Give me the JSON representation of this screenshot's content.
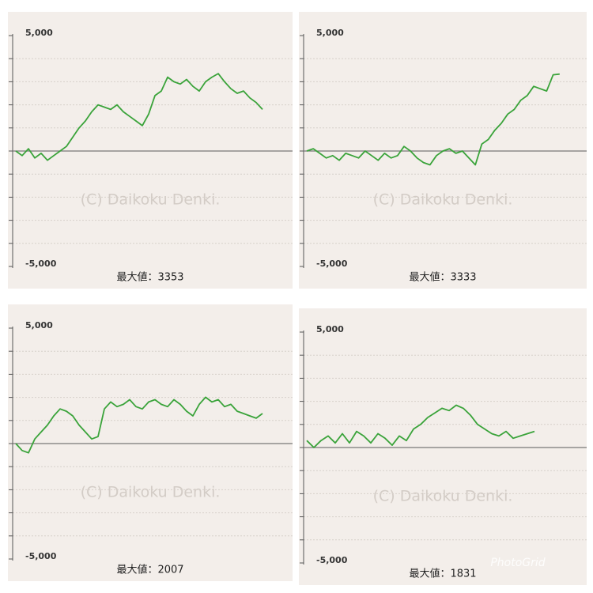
{
  "chart_data": [
    {
      "type": "line",
      "annotation": "最大値：3353",
      "watermark": "(C) Daikoku Denki.",
      "color": "#3aa33a",
      "grid": true,
      "ylim": [
        -5000,
        5000
      ],
      "yticks": [
        {
          "value": 5000,
          "label": "5,000"
        },
        {
          "value": -5000,
          "label": "-5,000"
        }
      ],
      "minor_yticks": [
        -4000,
        -3000,
        -2000,
        -1000,
        0,
        1000,
        2000,
        3000,
        4000
      ],
      "values": [
        0,
        -200,
        100,
        -300,
        -100,
        -400,
        -200,
        0,
        200,
        600,
        1000,
        1300,
        1700,
        2000,
        1900,
        1800,
        2000,
        1700,
        1500,
        1300,
        1100,
        1600,
        2400,
        2600,
        3200,
        3000,
        2900,
        3100,
        2800,
        2600,
        3000,
        3200,
        3353,
        3000,
        2700,
        2500,
        2600,
        2300,
        2100,
        1800
      ]
    },
    {
      "type": "line",
      "annotation": "最大値：3333",
      "watermark": "(C) Daikoku Denki.",
      "color": "#3aa33a",
      "grid": true,
      "ylim": [
        -5000,
        5000
      ],
      "yticks": [
        {
          "value": 5000,
          "label": "5,000"
        },
        {
          "value": -5000,
          "label": "-5,000"
        }
      ],
      "minor_yticks": [
        -4000,
        -3000,
        -2000,
        -1000,
        0,
        1000,
        2000,
        3000,
        4000
      ],
      "values": [
        0,
        100,
        -100,
        -300,
        -200,
        -400,
        -100,
        -200,
        -300,
        0,
        -200,
        -400,
        -100,
        -300,
        -200,
        200,
        0,
        -300,
        -500,
        -600,
        -200,
        0,
        100,
        -100,
        0,
        -300,
        -600,
        300,
        500,
        900,
        1200,
        1600,
        1800,
        2200,
        2400,
        2800,
        2700,
        2600,
        3300,
        3333
      ]
    },
    {
      "type": "line",
      "annotation": "最大値：2007",
      "watermark": "(C) Daikoku Denki.",
      "color": "#3aa33a",
      "grid": true,
      "ylim": [
        -5000,
        5000
      ],
      "yticks": [
        {
          "value": 5000,
          "label": "5,000"
        },
        {
          "value": -5000,
          "label": "-5,000"
        }
      ],
      "minor_yticks": [
        -4000,
        -3000,
        -2000,
        -1000,
        0,
        1000,
        2000,
        3000,
        4000
      ],
      "values": [
        0,
        -300,
        -400,
        200,
        500,
        800,
        1200,
        1500,
        1400,
        1200,
        800,
        500,
        200,
        300,
        1500,
        1800,
        1600,
        1700,
        1900,
        1600,
        1500,
        1800,
        1900,
        1700,
        1600,
        1900,
        1700,
        1400,
        1200,
        1700,
        2007,
        1800,
        1900,
        1600,
        1700,
        1400,
        1300,
        1200,
        1100,
        1300
      ]
    },
    {
      "type": "line",
      "annotation": "最大値：1831",
      "watermark": "(C) Daikoku Denki.",
      "color": "#3aa33a",
      "grid": true,
      "ylim": [
        -5000,
        5000
      ],
      "yticks": [
        {
          "value": 5000,
          "label": "5,000"
        },
        {
          "value": -5000,
          "label": "-5,000"
        }
      ],
      "minor_yticks": [
        -4000,
        -3000,
        -2000,
        -1000,
        0,
        1000,
        2000,
        3000,
        4000
      ],
      "values": [
        300,
        0,
        300,
        500,
        200,
        600,
        200,
        700,
        500,
        200,
        600,
        400,
        100,
        500,
        300,
        800,
        1000,
        1300,
        1500,
        1700,
        1600,
        1831,
        1700,
        1400,
        1000,
        800,
        600,
        500,
        700,
        400,
        500,
        600,
        700
      ]
    }
  ],
  "collage_watermark": "PhotoGrid"
}
